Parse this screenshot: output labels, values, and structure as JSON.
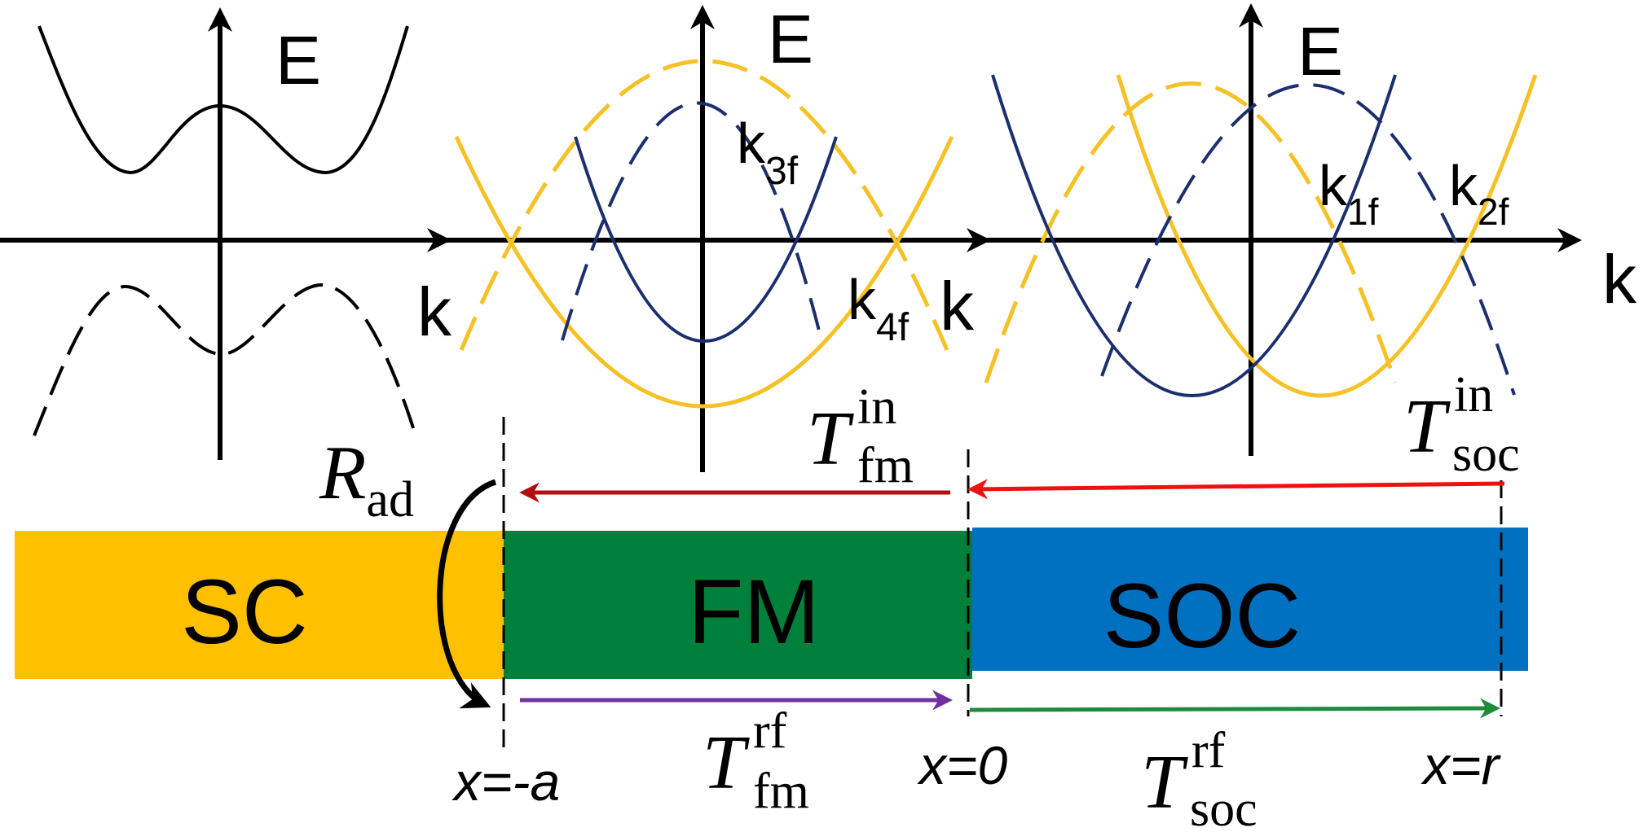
{
  "panels": {
    "sc": {
      "axis_e": "E",
      "axis_k": "k"
    },
    "fm": {
      "axis_e": "E",
      "axis_k": "k",
      "k3": {
        "base": "k",
        "sub": "3f"
      },
      "k4": {
        "base": "k",
        "sub": "4f"
      }
    },
    "soc": {
      "axis_e": "E",
      "axis_k": "k",
      "k1": {
        "base": "k",
        "sub": "1f"
      },
      "k2": {
        "base": "k",
        "sub": "2f"
      }
    }
  },
  "regions": {
    "sc": "SC",
    "fm": "FM",
    "soc": "SOC"
  },
  "positions": {
    "x_neg_a": "x=-a",
    "x_zero": "x=0",
    "x_r": "x=r"
  },
  "coefficients": {
    "R_ad": {
      "base": "R",
      "sub": "ad"
    },
    "T_fm_in": {
      "base": "T",
      "sup": "in",
      "sub": "fm"
    },
    "T_soc_in": {
      "base": "T",
      "sup": "in",
      "sub": "soc"
    },
    "T_fm_rf": {
      "base": "T",
      "sup": "rf",
      "sub": "fm"
    },
    "T_soc_rf": {
      "base": "T",
      "sup": "rf",
      "sub": "soc"
    }
  },
  "colors": {
    "sc_region": "#ffc000",
    "fm_region": "#00803a",
    "soc_region": "#0070c0",
    "band_yellow": "#f5c125",
    "band_navy": "#1b2f6e",
    "arrow_dark_red": "#b01010",
    "arrow_red": "#ee1111",
    "arrow_purple": "#7030a0",
    "arrow_green": "#1f8a3a"
  }
}
